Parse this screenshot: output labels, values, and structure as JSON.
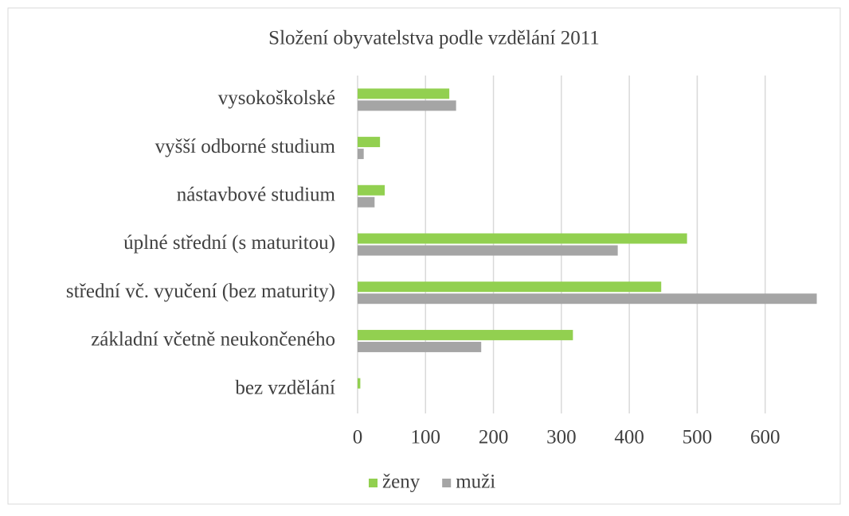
{
  "chart_data": {
    "type": "bar",
    "orientation": "horizontal",
    "title": "Složení obyvatelstva podle vzdělání 2011",
    "categories": [
      "vysokoškolské",
      "vyšší odborné studium",
      "nástavbové studium",
      "úplné střední (s maturitou)",
      "střední vč. vyučení (bez maturity)",
      "základní včetně neukončeného",
      "bez vzdělání"
    ],
    "series": [
      {
        "name": "ženy",
        "color": "#92d050",
        "values": [
          135,
          33,
          40,
          485,
          447,
          317,
          4
        ]
      },
      {
        "name": "muži",
        "color": "#a5a5a5",
        "values": [
          145,
          9,
          25,
          383,
          676,
          182,
          0
        ]
      }
    ],
    "xlim": [
      0,
      700
    ],
    "xticks": [
      0,
      100,
      200,
      300,
      400,
      500,
      600
    ],
    "grid": true,
    "legend": "bottom"
  }
}
